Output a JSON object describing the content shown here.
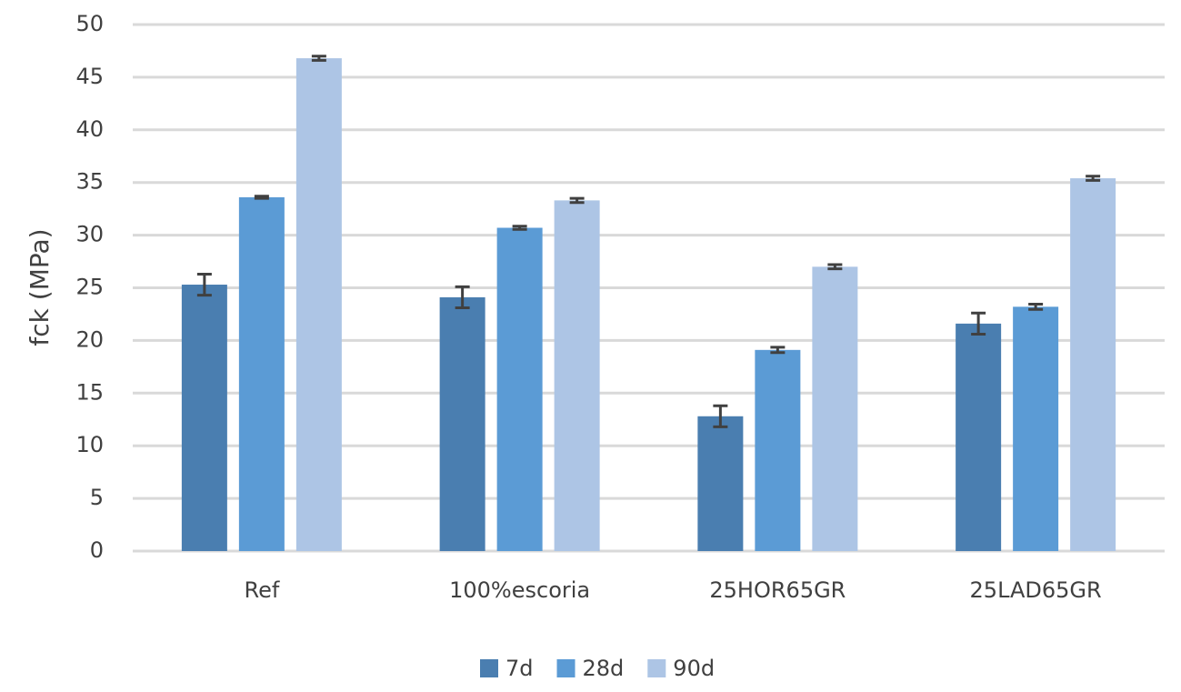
{
  "chart_data": {
    "type": "bar",
    "y_label": "fck (MPa)",
    "categories": [
      "Ref",
      "100%escoria",
      "25HOR65GR",
      "25LAD65GR"
    ],
    "series": [
      {
        "name": "7d",
        "color": "#4a7eb0",
        "values": [
          25.3,
          24.1,
          12.8,
          21.6
        ],
        "errors": [
          1.0,
          1.0,
          1.0,
          1.0
        ]
      },
      {
        "name": "28d",
        "color": "#5b9bd5",
        "values": [
          33.6,
          30.7,
          19.1,
          23.2
        ],
        "errors": [
          0.1,
          0.15,
          0.25,
          0.25
        ]
      },
      {
        "name": "90d",
        "color": "#adc5e5",
        "values": [
          46.8,
          33.3,
          27.0,
          35.4
        ],
        "errors": [
          0.2,
          0.2,
          0.2,
          0.2
        ]
      }
    ],
    "ylim": [
      0,
      50
    ],
    "yticks": [
      0,
      5,
      10,
      15,
      20,
      25,
      30,
      35,
      40,
      45,
      50
    ],
    "grid": true,
    "legend": "bottom",
    "error_color": "#404040"
  }
}
